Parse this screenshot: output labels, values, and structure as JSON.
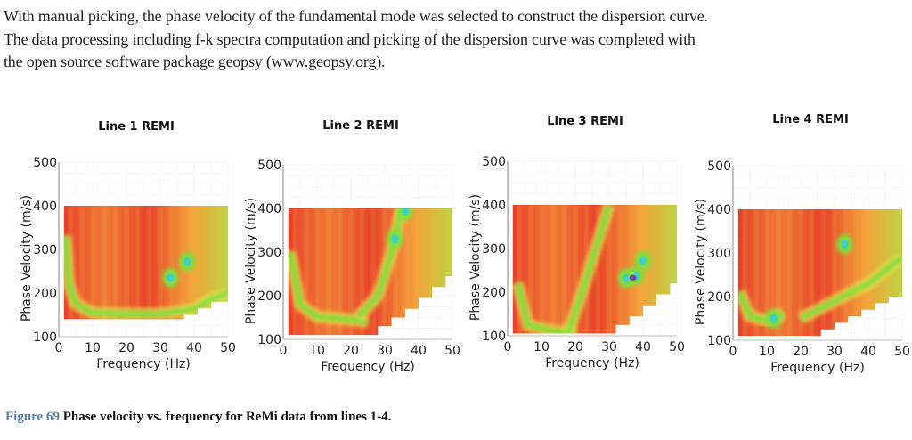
{
  "paragraph": [
    "With manual picking, the phase velocity of the fundamental mode was selected to construct the dispersion curve.",
    "The data processing including f-k spectra computation and picking of the dispersion curve was completed with",
    "the open source software package geopsy (www.geopsy.org)."
  ],
  "caption": {
    "label": "Figure 69",
    "text": "Phase velocity vs. frequency for ReMi data from lines 1-4."
  },
  "colors": {
    "background_high": "#e8412a",
    "mid": "#f4a23a",
    "ridge": "#7be03c",
    "peak": "#3fd0c8",
    "max": "#6a3fb0",
    "caption_label": "#5a82b4"
  },
  "chart_data": [
    {
      "type": "heatmap",
      "title": "Line 1 REMI",
      "xlabel": "Frequency (Hz)",
      "ylabel": "Phase Velocity (m/s)",
      "xlim": [
        0,
        50
      ],
      "ylim": [
        100,
        500
      ],
      "xticks": [
        "0",
        "10",
        "20",
        "30",
        "40",
        "50"
      ],
      "yticks": [
        "100",
        "200",
        "300",
        "400",
        "500"
      ],
      "lower_bound": [
        [
          1.5,
          140
        ],
        [
          37,
          140
        ],
        [
          37,
          150
        ],
        [
          41,
          150
        ],
        [
          41,
          165
        ],
        [
          45,
          165
        ],
        [
          45,
          180
        ],
        [
          50,
          180
        ]
      ],
      "ridges": [
        [
          [
            2,
            330
          ],
          [
            3,
            220
          ],
          [
            5,
            175
          ],
          [
            10,
            155
          ],
          [
            20,
            152
          ],
          [
            30,
            152
          ],
          [
            35,
            158
          ],
          [
            40,
            163
          ],
          [
            45,
            185
          ],
          [
            50,
            200
          ]
        ]
      ],
      "peaks": [
        [
          33,
          235
        ],
        [
          38,
          272
        ]
      ]
    },
    {
      "type": "heatmap",
      "title": "Line 2 REMI",
      "xlabel": "Frequency (Hz)",
      "ylabel": "Phase Velocity (m/s)",
      "xlim": [
        0,
        50
      ],
      "ylim": [
        100,
        500
      ],
      "xticks": [
        "0",
        "10",
        "20",
        "30",
        "40",
        "50"
      ],
      "yticks": [
        "100",
        "200",
        "300",
        "400",
        "500"
      ],
      "lower_bound": [
        [
          1.5,
          110
        ],
        [
          28,
          110
        ],
        [
          28,
          130
        ],
        [
          32,
          130
        ],
        [
          32,
          150
        ],
        [
          36,
          150
        ],
        [
          36,
          170
        ],
        [
          40,
          170
        ],
        [
          40,
          195
        ],
        [
          44,
          195
        ],
        [
          44,
          220
        ],
        [
          48,
          220
        ],
        [
          48,
          245
        ],
        [
          50,
          245
        ]
      ],
      "ridges": [
        [
          [
            2,
            300
          ],
          [
            5,
            180
          ],
          [
            10,
            152
          ],
          [
            20,
            145
          ],
          [
            25,
            140
          ]
        ],
        [
          [
            22,
            150
          ],
          [
            28,
            200
          ],
          [
            32,
            300
          ],
          [
            35,
            400
          ]
        ]
      ],
      "peaks": [
        [
          33,
          330
        ],
        [
          36,
          395
        ]
      ]
    },
    {
      "type": "heatmap",
      "title": "Line 3 REMI",
      "xlabel": "Frequency (Hz)",
      "ylabel": "Phase Velocity (m/s)",
      "xlim": [
        0,
        50
      ],
      "ylim": [
        100,
        500
      ],
      "xticks": [
        "0",
        "10",
        "20",
        "30",
        "40",
        "50"
      ],
      "yticks": [
        "100",
        "200",
        "300",
        "400",
        "500"
      ],
      "lower_bound": [
        [
          1.5,
          105
        ],
        [
          32,
          105
        ],
        [
          32,
          125
        ],
        [
          36,
          125
        ],
        [
          36,
          145
        ],
        [
          40,
          145
        ],
        [
          40,
          170
        ],
        [
          44,
          170
        ],
        [
          44,
          195
        ],
        [
          48,
          195
        ],
        [
          48,
          220
        ],
        [
          50,
          220
        ]
      ],
      "ridges": [
        [
          [
            3,
            220
          ],
          [
            6,
            125
          ],
          [
            15,
            108
          ],
          [
            20,
            112
          ]
        ],
        [
          [
            18,
            110
          ],
          [
            22,
            200
          ],
          [
            26,
            300
          ],
          [
            30,
            400
          ]
        ]
      ],
      "peaks": [
        [
          35,
          232
        ],
        [
          38,
          238
        ],
        [
          40,
          272
        ]
      ]
    },
    {
      "type": "heatmap",
      "title": "Line 4 REMI",
      "xlabel": "Frequency (Hz)",
      "ylabel": "Phase Velocity (m/s)",
      "xlim": [
        0,
        50
      ],
      "ylim": [
        100,
        500
      ],
      "xticks": [
        "0",
        "10",
        "20",
        "30",
        "40",
        "50"
      ],
      "yticks": [
        "100",
        "200",
        "300",
        "400",
        "500"
      ],
      "lower_bound": [
        [
          1.5,
          110
        ],
        [
          26,
          110
        ],
        [
          26,
          125
        ],
        [
          30,
          125
        ],
        [
          30,
          140
        ],
        [
          34,
          140
        ],
        [
          34,
          155
        ],
        [
          38,
          155
        ],
        [
          38,
          170
        ],
        [
          42,
          170
        ],
        [
          42,
          185
        ],
        [
          46,
          185
        ],
        [
          46,
          200
        ],
        [
          50,
          200
        ]
      ],
      "ridges": [
        [
          [
            2,
            210
          ],
          [
            5,
            155
          ],
          [
            10,
            145
          ],
          [
            15,
            160
          ]
        ],
        [
          [
            20,
            150
          ],
          [
            30,
            190
          ],
          [
            40,
            230
          ],
          [
            50,
            290
          ]
        ]
      ],
      "peaks": [
        [
          33,
          320
        ],
        [
          12,
          150
        ]
      ]
    }
  ]
}
